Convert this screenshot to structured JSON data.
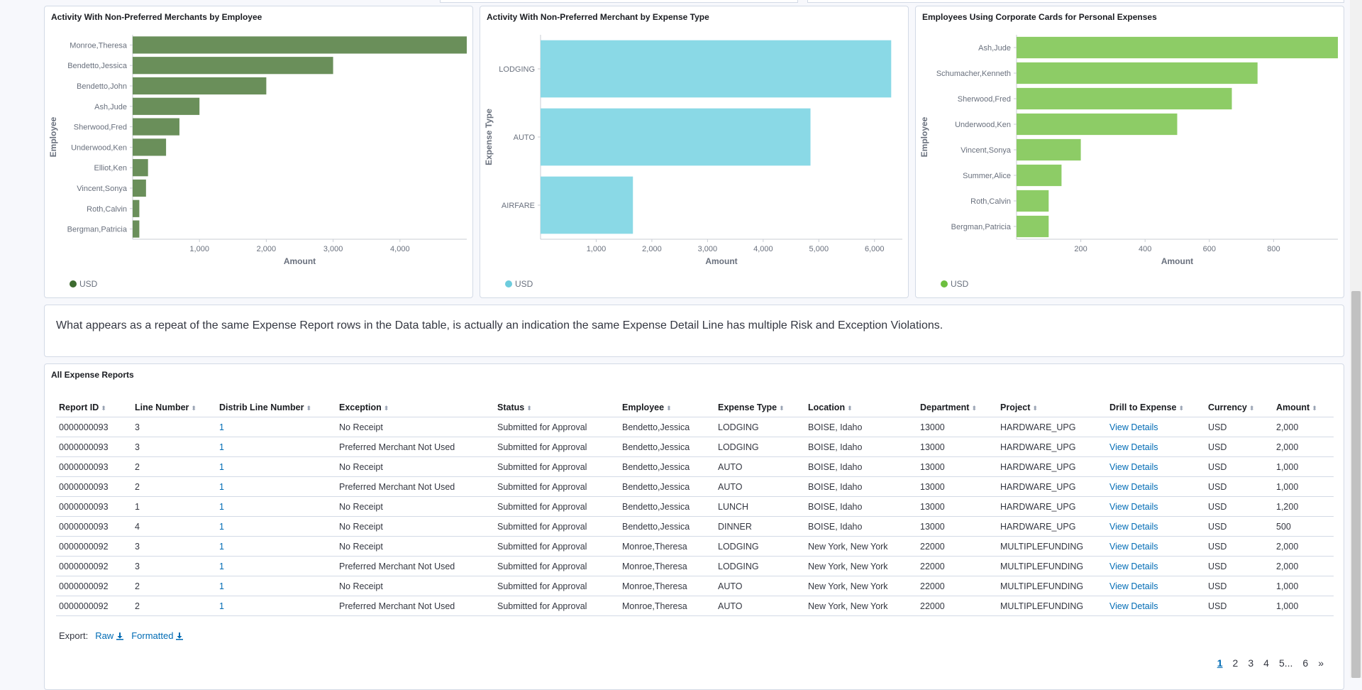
{
  "charts": [
    {
      "title": "Activity With Non-Preferred Merchants by Employee",
      "xlabel": "Amount",
      "ylabel": "Employee",
      "legend": "USD",
      "color": "#6a8f5a",
      "legend_color": "#3d6b2f",
      "chart_data": {
        "type": "bar",
        "orientation": "horizontal",
        "categories": [
          "Monroe,Theresa",
          "Bendetto,Jessica",
          "Bendetto,John",
          "Ash,Jude",
          "Sherwood,Fred",
          "Underwood,Ken",
          "Elliot,Ken",
          "Vincent,Sonya",
          "Roth,Calvin",
          "Bergman,Patricia"
        ],
        "values": [
          5000,
          3000,
          2000,
          1000,
          700,
          500,
          230,
          200,
          100,
          100
        ],
        "xticks": [
          1000,
          2000,
          3000,
          4000
        ],
        "xtick_labels": [
          "1,000",
          "2,000",
          "3,000",
          "4,000"
        ],
        "xlim": [
          0,
          5000
        ]
      }
    },
    {
      "title": "Activity With Non-Preferred Merchant by Expense Type",
      "xlabel": "Amount",
      "ylabel": "Expense Type",
      "legend": "USD",
      "color": "#8ad9e6",
      "legend_color": "#6dccdd",
      "chart_data": {
        "type": "bar",
        "orientation": "horizontal",
        "categories": [
          "LODGING",
          "AUTO",
          "AIRFARE"
        ],
        "values": [
          6300,
          4850,
          1660
        ],
        "xticks": [
          1000,
          2000,
          3000,
          4000,
          5000,
          6000
        ],
        "xtick_labels": [
          "1,000",
          "2,000",
          "3,000",
          "4,000",
          "5,000",
          "6,000"
        ],
        "xlim": [
          0,
          6500
        ]
      }
    },
    {
      "title": "Employees Using Corporate Cards for Personal Expenses",
      "xlabel": "Amount",
      "ylabel": "Employee",
      "legend": "USD",
      "color": "#8dcc66",
      "legend_color": "#6dbf3f",
      "chart_data": {
        "type": "bar",
        "orientation": "horizontal",
        "categories": [
          "Ash,Jude",
          "Schumacher,Kenneth",
          "Sherwood,Fred",
          "Underwood,Ken",
          "Vincent,Sonya",
          "Summer,Alice",
          "Roth,Calvin",
          "Bergman,Patricia"
        ],
        "values": [
          1000,
          750,
          670,
          500,
          200,
          140,
          100,
          100
        ],
        "xticks": [
          200,
          400,
          600,
          800
        ],
        "xtick_labels": [
          "200",
          "400",
          "600",
          "800"
        ],
        "xlim": [
          0,
          1000
        ]
      }
    }
  ],
  "note": "What appears as a repeat of the same Expense Report rows in the Data table, is actually an indication the same Expense Detail Line has multiple Risk and Exception Violations.",
  "table": {
    "title": "All Expense Reports",
    "columns": [
      "Report ID",
      "Line Number",
      "Distrib Line Number",
      "Exception",
      "Status",
      "Employee",
      "Expense Type",
      "Location",
      "Department",
      "Project",
      "Drill to Expense",
      "Currency",
      "Amount"
    ],
    "rows": [
      [
        "0000000093",
        "3",
        "1",
        "No Receipt",
        "Submitted for Approval",
        "Bendetto,Jessica",
        "LODGING",
        "BOISE, Idaho",
        "13000",
        "HARDWARE_UPG",
        "View Details",
        "USD",
        "2,000"
      ],
      [
        "0000000093",
        "3",
        "1",
        "Preferred Merchant Not Used",
        "Submitted for Approval",
        "Bendetto,Jessica",
        "LODGING",
        "BOISE, Idaho",
        "13000",
        "HARDWARE_UPG",
        "View Details",
        "USD",
        "2,000"
      ],
      [
        "0000000093",
        "2",
        "1",
        "No Receipt",
        "Submitted for Approval",
        "Bendetto,Jessica",
        "AUTO",
        "BOISE, Idaho",
        "13000",
        "HARDWARE_UPG",
        "View Details",
        "USD",
        "1,000"
      ],
      [
        "0000000093",
        "2",
        "1",
        "Preferred Merchant Not Used",
        "Submitted for Approval",
        "Bendetto,Jessica",
        "AUTO",
        "BOISE, Idaho",
        "13000",
        "HARDWARE_UPG",
        "View Details",
        "USD",
        "1,000"
      ],
      [
        "0000000093",
        "1",
        "1",
        "No Receipt",
        "Submitted for Approval",
        "Bendetto,Jessica",
        "LUNCH",
        "BOISE, Idaho",
        "13000",
        "HARDWARE_UPG",
        "View Details",
        "USD",
        "1,200"
      ],
      [
        "0000000093",
        "4",
        "1",
        "No Receipt",
        "Submitted for Approval",
        "Bendetto,Jessica",
        "DINNER",
        "BOISE, Idaho",
        "13000",
        "HARDWARE_UPG",
        "View Details",
        "USD",
        "500"
      ],
      [
        "0000000092",
        "3",
        "1",
        "No Receipt",
        "Submitted for Approval",
        "Monroe,Theresa",
        "LODGING",
        "New York, New York",
        "22000",
        "MULTIPLEFUNDING",
        "View Details",
        "USD",
        "2,000"
      ],
      [
        "0000000092",
        "3",
        "1",
        "Preferred Merchant Not Used",
        "Submitted for Approval",
        "Monroe,Theresa",
        "LODGING",
        "New York, New York",
        "22000",
        "MULTIPLEFUNDING",
        "View Details",
        "USD",
        "2,000"
      ],
      [
        "0000000092",
        "2",
        "1",
        "No Receipt",
        "Submitted for Approval",
        "Monroe,Theresa",
        "AUTO",
        "New York, New York",
        "22000",
        "MULTIPLEFUNDING",
        "View Details",
        "USD",
        "1,000"
      ],
      [
        "0000000092",
        "2",
        "1",
        "Preferred Merchant Not Used",
        "Submitted for Approval",
        "Monroe,Theresa",
        "AUTO",
        "New York, New York",
        "22000",
        "MULTIPLEFUNDING",
        "View Details",
        "USD",
        "1,000"
      ]
    ]
  },
  "export": {
    "label": "Export:",
    "raw": "Raw",
    "formatted": "Formatted"
  },
  "pagination": {
    "pages": [
      "1",
      "2",
      "3",
      "4",
      "5"
    ],
    "ellipsis": "...",
    "last": "6",
    "next": "»"
  }
}
